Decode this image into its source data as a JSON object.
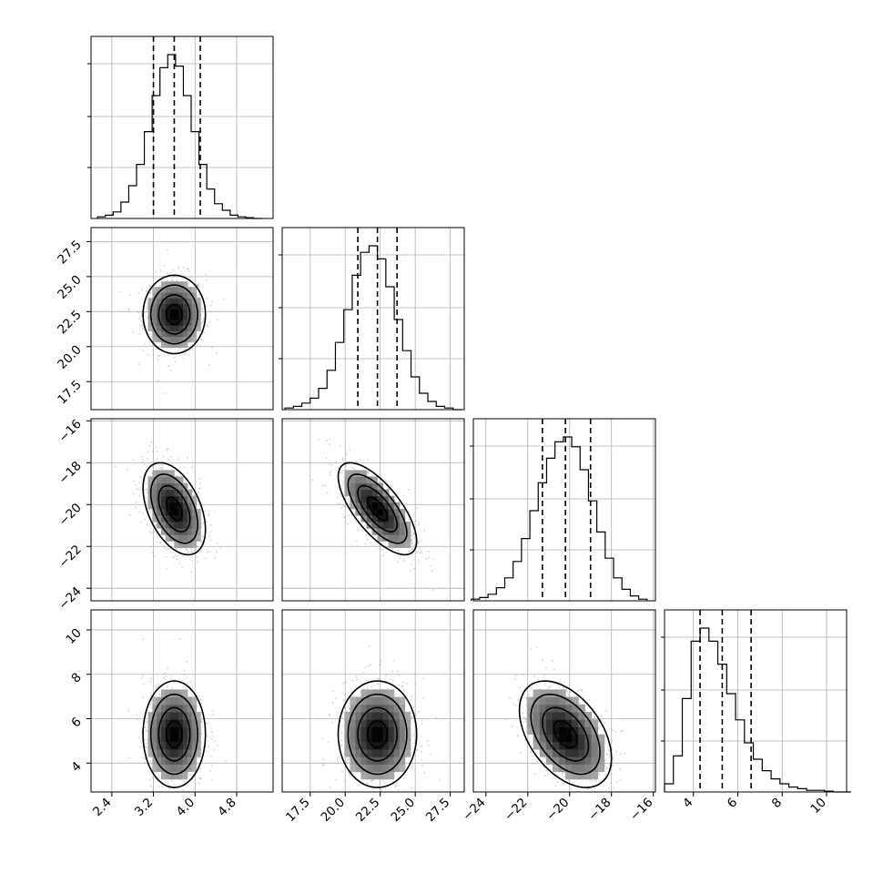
{
  "chart_data": {
    "type": "corner",
    "grid": true,
    "parameters": [
      {
        "mean": 3.6,
        "sd": 0.3,
        "range": [
          2.0,
          5.5
        ],
        "ticks": [
          2.4,
          3.2,
          4.0,
          4.8
        ],
        "tick_labels": [
          "2.4",
          "3.2",
          "4.0",
          "4.8"
        ],
        "quantiles": [
          3.2,
          3.6,
          4.1
        ]
      },
      {
        "mean": 22.3,
        "sd": 1.4,
        "range": [
          15.5,
          28.5
        ],
        "ticks": [
          17.5,
          20.0,
          22.5,
          25.0,
          27.5
        ],
        "tick_labels": [
          "17.5",
          "20.0",
          "22.5",
          "25.0",
          "27.5"
        ],
        "quantiles": [
          20.9,
          22.3,
          23.7
        ]
      },
      {
        "mean": -20.2,
        "sd": 1.1,
        "range": [
          -24.6,
          -15.9
        ],
        "ticks": [
          -24,
          -22,
          -20,
          -18,
          -16
        ],
        "tick_labels": [
          "−24",
          "−22",
          "−20",
          "−18",
          "−16"
        ],
        "quantiles": [
          -21.3,
          -20.2,
          -19.0
        ]
      },
      {
        "mean": 5.3,
        "sd": 1.2,
        "range": [
          2.7,
          10.9
        ],
        "ticks": [
          4,
          6,
          8,
          10
        ],
        "tick_labels": [
          "4",
          "6",
          "8",
          "10"
        ],
        "quantiles": [
          4.3,
          5.3,
          6.6
        ]
      }
    ],
    "correlations": [
      [
        1.0,
        0.0,
        -0.45,
        0.0
      ],
      [
        0.0,
        1.0,
        -0.7,
        0.0
      ],
      [
        -0.45,
        -0.7,
        1.0,
        -0.45
      ],
      [
        0.0,
        0.0,
        -0.45,
        1.0
      ]
    ],
    "histograms": [
      {
        "x": [
          2.2,
          2.35,
          2.5,
          2.65,
          2.8,
          2.95,
          3.1,
          3.25,
          3.4,
          3.55,
          3.7,
          3.85,
          4.0,
          4.15,
          4.3,
          4.45,
          4.6,
          4.75,
          4.9,
          5.05,
          5.2
        ],
        "counts": [
          0.01,
          0.02,
          0.04,
          0.1,
          0.2,
          0.33,
          0.53,
          0.75,
          0.92,
          1.0,
          0.93,
          0.75,
          0.53,
          0.33,
          0.18,
          0.09,
          0.05,
          0.02,
          0.01,
          0.005,
          0.0
        ]
      },
      {
        "x": [
          16.0,
          16.6,
          17.2,
          17.8,
          18.4,
          19.0,
          19.6,
          20.2,
          20.8,
          21.4,
          22.0,
          22.6,
          23.2,
          23.8,
          24.4,
          25.0,
          25.6,
          26.2,
          26.8,
          27.4,
          28.0
        ],
        "counts": [
          0.01,
          0.02,
          0.04,
          0.07,
          0.13,
          0.24,
          0.41,
          0.61,
          0.82,
          0.96,
          1.0,
          0.92,
          0.75,
          0.55,
          0.36,
          0.2,
          0.1,
          0.05,
          0.02,
          0.01,
          0.0
        ]
      },
      {
        "x": [
          -24.5,
          -24.1,
          -23.7,
          -23.3,
          -22.9,
          -22.5,
          -22.1,
          -21.7,
          -21.3,
          -20.9,
          -20.5,
          -20.1,
          -19.7,
          -19.3,
          -18.9,
          -18.5,
          -18.1,
          -17.7,
          -17.3,
          -16.9,
          -16.5
        ],
        "counts": [
          0.01,
          0.02,
          0.04,
          0.08,
          0.14,
          0.24,
          0.38,
          0.55,
          0.72,
          0.87,
          0.97,
          1.0,
          0.94,
          0.8,
          0.61,
          0.42,
          0.26,
          0.14,
          0.07,
          0.03,
          0.01
        ]
      },
      {
        "x": [
          2.9,
          3.3,
          3.7,
          4.1,
          4.5,
          4.9,
          5.3,
          5.7,
          6.1,
          6.5,
          6.9,
          7.3,
          7.7,
          8.1,
          8.5,
          8.9,
          9.3,
          9.7,
          10.1,
          10.5,
          10.9
        ],
        "counts": [
          0.05,
          0.22,
          0.57,
          0.92,
          1.0,
          0.92,
          0.78,
          0.6,
          0.44,
          0.3,
          0.2,
          0.13,
          0.08,
          0.05,
          0.03,
          0.02,
          0.01,
          0.01,
          0.005,
          0.0,
          0.0
        ]
      }
    ]
  }
}
